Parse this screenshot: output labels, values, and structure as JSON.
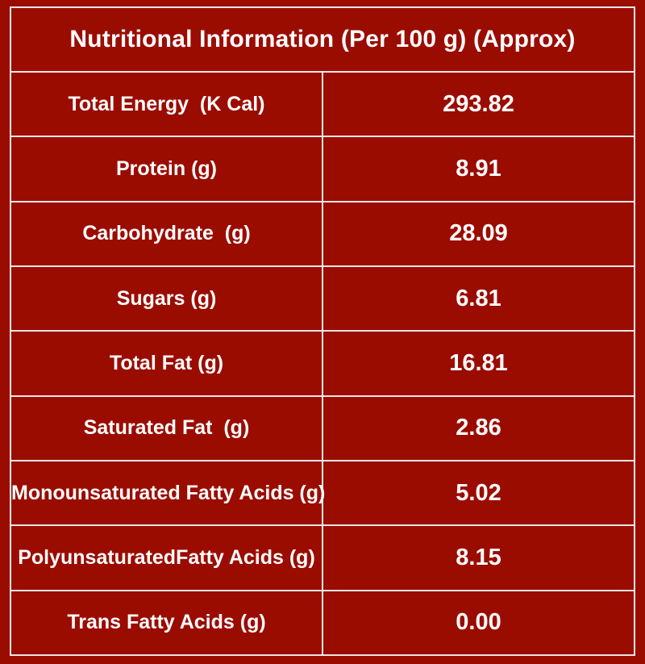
{
  "table": {
    "title": "Nutritional Information (Per 100 g) (Approx)",
    "rows": [
      {
        "label": "Total Energy  (K Cal)",
        "value": "293.82"
      },
      {
        "label": "Protein (g)",
        "value": "8.91"
      },
      {
        "label": "Carbohydrate  (g)",
        "value": "28.09"
      },
      {
        "label": "Sugars (g)",
        "value": "6.81"
      },
      {
        "label": "Total Fat (g)",
        "value": "16.81"
      },
      {
        "label": "Saturated Fat  (g)",
        "value": "2.86"
      },
      {
        "label": "Monounsaturated Fatty Acids (g)",
        "value": "5.02"
      },
      {
        "label": "PolyunsaturatedFatty Acids (g)",
        "value": "8.15"
      },
      {
        "label": "Trans Fatty Acids (g)",
        "value": "0.00"
      }
    ]
  },
  "colors": {
    "background": "#9b0c00",
    "border": "#f3e6e4",
    "text": "#ffffff"
  }
}
